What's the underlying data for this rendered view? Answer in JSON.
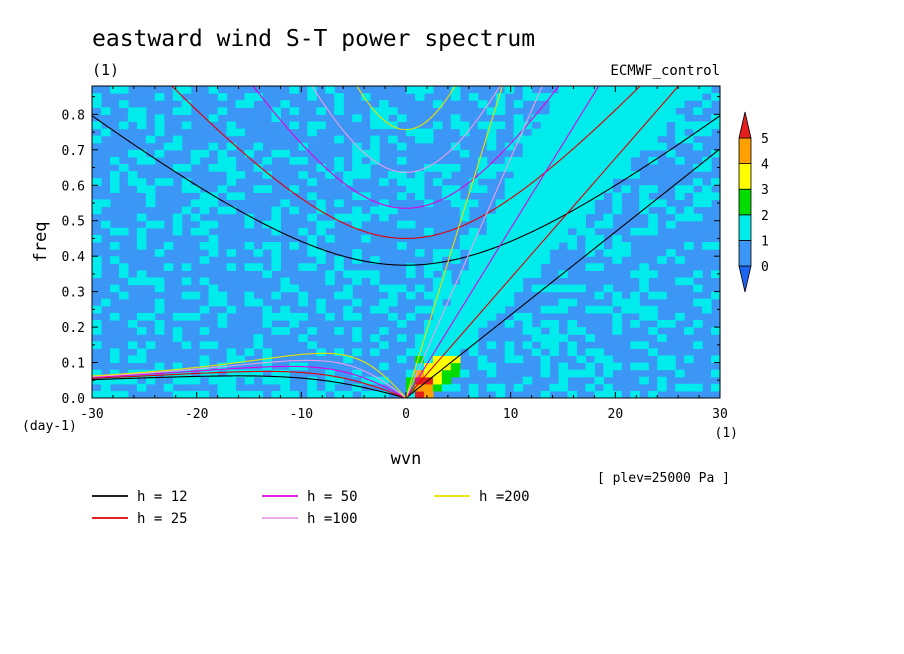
{
  "chart_data": {
    "type": "heatmap",
    "title": "eastward wind S-T power spectrum",
    "subtitle_left": "(1)",
    "subtitle_right": "ECMWF_control",
    "xlabel": "wvn",
    "ylabel": "freq",
    "x_unit": "(1)",
    "y_unit": "(day-1)",
    "xlim": [
      -30,
      30
    ],
    "ylim": [
      0,
      0.88
    ],
    "xticks": [
      -30,
      -20,
      -10,
      0,
      10,
      20,
      30
    ],
    "yticks": [
      0.0,
      0.1,
      0.2,
      0.3,
      0.4,
      0.5,
      0.6,
      0.7,
      0.8
    ],
    "xtick_labels": [
      "-30",
      "-20",
      "-10",
      "0",
      "10",
      "20",
      "30"
    ],
    "ytick_labels": [
      "0.0",
      "0.1",
      "0.2",
      "0.3",
      "0.4",
      "0.5",
      "0.6",
      "0.7",
      "0.8"
    ],
    "annotation": "[ plev=25000 Pa ]",
    "colorbar": {
      "labels": [
        "0",
        "1",
        "2",
        "3",
        "4",
        "5"
      ],
      "colors": [
        "#1e64f0",
        "#3c96f5",
        "#00ecec",
        "#00dc00",
        "#ffff00",
        "#ffa000",
        "#e61e1e"
      ]
    },
    "field_summary": {
      "background_level": "0-1",
      "kelvin_band_level": "1-2",
      "peak_level": "3-5",
      "peak_location": {
        "wvn": 2,
        "freq": 0.03
      }
    },
    "dispersion_curves": [
      {
        "name": "h = 12",
        "h": 12,
        "color": "#000000"
      },
      {
        "name": "h = 25",
        "h": 25,
        "color": "#e00000"
      },
      {
        "name": "h = 50",
        "h": 50,
        "color": "#e000e0"
      },
      {
        "name": "h =100",
        "h": 100,
        "color": "#e8a0e8"
      },
      {
        "name": "h =200",
        "h": 200,
        "color": "#e8e000"
      }
    ]
  }
}
